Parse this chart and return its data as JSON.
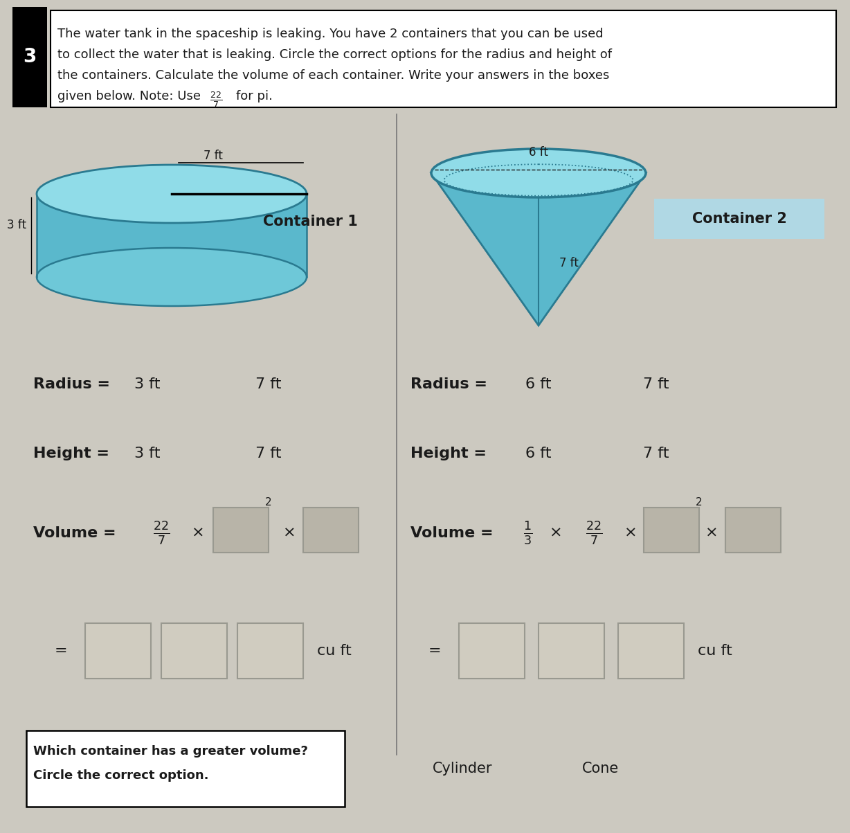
{
  "bg_color": "#ccc9c0",
  "problem_number": "3",
  "container1_label": "Container 1",
  "container2_label": "Container 2",
  "cyl_top_label": "7 ft",
  "cyl_side_label": "3 ft",
  "cone_top_label": "6 ft",
  "cone_side_label": "7 ft",
  "c1_r_opt1": "3 ft",
  "c1_r_opt2": "7 ft",
  "c1_h_opt1": "3 ft",
  "c1_h_opt2": "7 ft",
  "c2_r_opt1": "6 ft",
  "c2_r_opt2": "7 ft",
  "c2_h_opt1": "6 ft",
  "c2_h_opt2": "7 ft",
  "bottom_question": "Which container has a greater volume?\nCircle the correct option.",
  "cyl_option": "Cylinder",
  "cone_option": "Cone",
  "divider_color": "#777777",
  "text_color": "#1a1a1a",
  "box_fill": "#b8b4a8",
  "box_fill_light": "#d0ccc0",
  "box_border": "#999990",
  "shape_fill": "#6ec8d8",
  "shape_fill_top": "#90dce8",
  "shape_edge": "#2a7a90",
  "shape_fill_body": "#5ab8cc",
  "title_text_line1": "The water tank in the spaceship is leaking. You have 2 containers that you can be used",
  "title_text_line2": "to collect the water that is leaking. Circle the correct options for the radius and height of",
  "title_text_line3": "the containers. Calculate the volume of each container. Write your answers in the boxes",
  "title_text_line4": "given below. Note: Use",
  "title_text_line4b": "for pi.",
  "white": "#ffffff",
  "black": "#000000"
}
